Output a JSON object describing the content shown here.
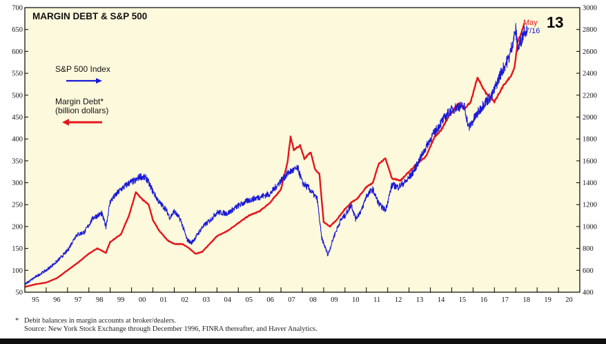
{
  "chart_data": {
    "type": "line",
    "title": "MARGIN DEBT & S&P 500",
    "page_number": "13",
    "x_tick_labels": [
      "95",
      "96",
      "97",
      "98",
      "99",
      "00",
      "01",
      "02",
      "03",
      "04",
      "05",
      "06",
      "07",
      "08",
      "09",
      "10",
      "11",
      "12",
      "13",
      "14",
      "15",
      "16",
      "17",
      "18",
      "19",
      "20"
    ],
    "x_range": [
      1995,
      2021
    ],
    "left_axis": {
      "label": "Margin Debt (billion dollars)",
      "range": [
        50,
        700
      ],
      "ticks": [
        50,
        100,
        150,
        200,
        250,
        300,
        350,
        400,
        450,
        500,
        550,
        600,
        650,
        700
      ]
    },
    "right_axis": {
      "label": "S&P 500 Index",
      "range": [
        400,
        3000
      ],
      "ticks": [
        400,
        600,
        800,
        1000,
        1200,
        1400,
        1600,
        1800,
        2000,
        2200,
        2400,
        2600,
        2800,
        3000
      ]
    },
    "legend": [
      {
        "label": "S&P 500 Index",
        "color": "#1a1ad6",
        "axis": "right",
        "arrow": "right"
      },
      {
        "label": "Margin Debt*",
        "label2": "(billion dollars)",
        "color": "#e4161b",
        "axis": "left",
        "arrow": "left"
      }
    ],
    "annotations": {
      "margin_debt_latest": "May",
      "sp500_latest": "7/16"
    },
    "series": [
      {
        "name": "Margin Debt",
        "axis": "left",
        "color": "#e4161b",
        "x": [
          1995.0,
          1995.5,
          1996.0,
          1996.5,
          1997.0,
          1997.5,
          1998.0,
          1998.4,
          1998.8,
          1999.0,
          1999.5,
          1999.9,
          2000.2,
          2000.5,
          2000.8,
          2001.0,
          2001.3,
          2001.7,
          2002.0,
          2002.4,
          2002.7,
          2003.0,
          2003.3,
          2003.7,
          2004.0,
          2004.5,
          2005.0,
          2005.5,
          2006.0,
          2006.5,
          2007.0,
          2007.3,
          2007.45,
          2007.6,
          2007.9,
          2008.1,
          2008.4,
          2008.6,
          2008.8,
          2009.0,
          2009.3,
          2009.6,
          2010.0,
          2010.3,
          2010.6,
          2011.0,
          2011.3,
          2011.6,
          2011.9,
          2012.2,
          2012.6,
          2013.0,
          2013.4,
          2013.8,
          2014.2,
          2014.5,
          2014.9,
          2015.3,
          2015.6,
          2015.9,
          2016.2,
          2016.6,
          2017.0,
          2017.4,
          2017.8,
          2017.95,
          2018.1,
          2018.25,
          2018.4
        ],
        "values": [
          62,
          68,
          72,
          82,
          100,
          118,
          138,
          150,
          140,
          165,
          182,
          228,
          278,
          262,
          250,
          215,
          190,
          168,
          160,
          160,
          150,
          138,
          142,
          162,
          178,
          190,
          208,
          225,
          235,
          255,
          285,
          345,
          405,
          375,
          385,
          355,
          370,
          330,
          320,
          210,
          200,
          215,
          240,
          255,
          265,
          290,
          300,
          345,
          355,
          310,
          305,
          325,
          345,
          360,
          405,
          420,
          455,
          480,
          470,
          485,
          540,
          505,
          485,
          520,
          545,
          565,
          625,
          640,
          665
        ]
      },
      {
        "name": "S&P 500 Index",
        "axis": "right",
        "color": "#1a1ad6",
        "x": [
          1995.0,
          1995.5,
          1996.0,
          1996.5,
          1997.0,
          1997.4,
          1997.8,
          1998.2,
          1998.6,
          1998.8,
          1999.0,
          1999.5,
          1999.9,
          2000.2,
          2000.4,
          2000.7,
          2001.0,
          2001.3,
          2001.6,
          2001.8,
          2002.0,
          2002.3,
          2002.6,
          2002.8,
          2003.0,
          2003.3,
          2003.7,
          2004.0,
          2004.5,
          2005.0,
          2005.5,
          2006.0,
          2006.5,
          2007.0,
          2007.4,
          2007.8,
          2008.0,
          2008.3,
          2008.7,
          2008.9,
          2009.2,
          2009.5,
          2009.8,
          2010.0,
          2010.3,
          2010.5,
          2010.8,
          2011.0,
          2011.3,
          2011.6,
          2011.9,
          2012.2,
          2012.5,
          2012.9,
          2013.2,
          2013.6,
          2014.0,
          2014.5,
          2014.9,
          2015.3,
          2015.6,
          2015.8,
          2016.1,
          2016.5,
          2016.9,
          2017.3,
          2017.7,
          2018.0,
          2018.1,
          2018.25,
          2018.4,
          2018.53
        ],
        "values": [
          470,
          540,
          600,
          680,
          780,
          920,
          950,
          1080,
          1120,
          1000,
          1230,
          1340,
          1400,
          1420,
          1460,
          1440,
          1320,
          1220,
          1160,
          1080,
          1140,
          1060,
          880,
          850,
          900,
          990,
          1060,
          1130,
          1120,
          1190,
          1240,
          1270,
          1300,
          1420,
          1500,
          1530,
          1400,
          1350,
          1250,
          900,
          740,
          920,
          1060,
          1100,
          1200,
          1070,
          1160,
          1280,
          1340,
          1200,
          1150,
          1380,
          1360,
          1420,
          1500,
          1650,
          1800,
          1950,
          2050,
          2100,
          2090,
          1900,
          2000,
          2120,
          2200,
          2400,
          2550,
          2800,
          2620,
          2700,
          2790,
          2800
        ]
      }
    ]
  },
  "footnote": {
    "marker": "*",
    "line1": "Debit balances in margin accounts at broker/dealers.",
    "line2": "Source: New York Stock Exchange through December 1996, FINRA thereafter, and Haver Analytics."
  }
}
